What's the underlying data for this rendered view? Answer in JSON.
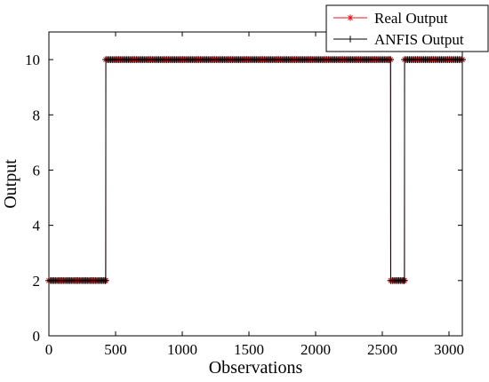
{
  "chart_data": {
    "type": "line",
    "title": "",
    "xlabel": "Observations",
    "ylabel": "Output",
    "xlim": [
      0,
      3100
    ],
    "ylim": [
      0,
      11
    ],
    "xticks": [
      0,
      500,
      1000,
      1500,
      2000,
      2500,
      3000
    ],
    "yticks": [
      0,
      2,
      4,
      6,
      8,
      10
    ],
    "grid": false,
    "legend_position": "top-right",
    "series": [
      {
        "name": "Real Output",
        "color": "#e8121b",
        "marker": "asterisk",
        "x": [
          0,
          426,
          427,
          2562,
          2563,
          2666,
          2667,
          3100
        ],
        "y": [
          2,
          2,
          10,
          10,
          2,
          2,
          10,
          10
        ]
      },
      {
        "name": "ANFIS Output",
        "color": "#000000",
        "marker": "plus",
        "x": [
          0,
          426,
          427,
          2562,
          2563,
          2666,
          2667,
          3100
        ],
        "y": [
          2,
          2,
          10,
          10,
          2,
          2,
          10,
          10
        ]
      }
    ]
  }
}
